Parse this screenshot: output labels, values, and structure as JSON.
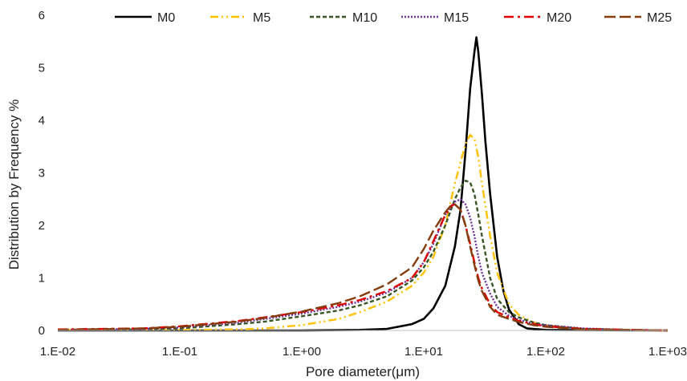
{
  "chart_data": {
    "type": "line",
    "title": "",
    "xlabel": "Pore diameter(μm)",
    "ylabel": "Distribution by Frequency %",
    "x_scale": "log",
    "xlim": [
      0.01,
      1000
    ],
    "ylim": [
      0,
      6
    ],
    "x_ticks": [
      "1.E-02",
      "1.E-01",
      "1.E+00",
      "1.E+01",
      "1.E+02",
      "1.E+03"
    ],
    "y_ticks": [
      "0",
      "1",
      "2",
      "3",
      "4",
      "5",
      "6"
    ],
    "grid": false,
    "legend_position": "top",
    "series": [
      {
        "name": "M0",
        "color": "#000000",
        "dash": "solid",
        "points": [
          [
            0.01,
            0
          ],
          [
            0.1,
            0
          ],
          [
            1,
            0
          ],
          [
            3,
            0.01
          ],
          [
            5,
            0.03
          ],
          [
            8,
            0.12
          ],
          [
            10,
            0.22
          ],
          [
            12,
            0.42
          ],
          [
            15,
            0.85
          ],
          [
            18,
            1.6
          ],
          [
            20,
            2.3
          ],
          [
            22,
            3.4
          ],
          [
            24,
            4.6
          ],
          [
            26,
            5.3
          ],
          [
            27,
            5.58
          ],
          [
            28,
            5.3
          ],
          [
            30,
            4.5
          ],
          [
            32,
            3.6
          ],
          [
            35,
            2.6
          ],
          [
            40,
            1.4
          ],
          [
            45,
            0.75
          ],
          [
            50,
            0.4
          ],
          [
            60,
            0.12
          ],
          [
            70,
            0.04
          ],
          [
            100,
            0.01
          ],
          [
            1000,
            0
          ]
        ]
      },
      {
        "name": "M5",
        "color": "#FFC000",
        "dash": "dashdotdot",
        "points": [
          [
            0.01,
            0.01
          ],
          [
            0.05,
            0.01
          ],
          [
            0.1,
            0.01
          ],
          [
            0.3,
            0.02
          ],
          [
            0.5,
            0.04
          ],
          [
            1,
            0.1
          ],
          [
            2,
            0.22
          ],
          [
            3,
            0.35
          ],
          [
            5,
            0.55
          ],
          [
            8,
            0.85
          ],
          [
            10,
            1.1
          ],
          [
            12,
            1.4
          ],
          [
            15,
            2.0
          ],
          [
            18,
            2.8
          ],
          [
            20,
            3.2
          ],
          [
            22,
            3.55
          ],
          [
            24,
            3.72
          ],
          [
            26,
            3.65
          ],
          [
            28,
            3.3
          ],
          [
            30,
            2.8
          ],
          [
            35,
            1.8
          ],
          [
            40,
            1.1
          ],
          [
            50,
            0.5
          ],
          [
            60,
            0.3
          ],
          [
            80,
            0.15
          ],
          [
            100,
            0.1
          ],
          [
            200,
            0.03
          ],
          [
            500,
            0.01
          ],
          [
            1000,
            0
          ]
        ]
      },
      {
        "name": "M10",
        "color": "#375623",
        "dash": "dashed",
        "points": [
          [
            0.01,
            0.01
          ],
          [
            0.05,
            0.02
          ],
          [
            0.1,
            0.04
          ],
          [
            0.3,
            0.12
          ],
          [
            0.5,
            0.17
          ],
          [
            1,
            0.27
          ],
          [
            2,
            0.38
          ],
          [
            3,
            0.48
          ],
          [
            5,
            0.65
          ],
          [
            8,
            0.95
          ],
          [
            10,
            1.2
          ],
          [
            12,
            1.5
          ],
          [
            15,
            2.0
          ],
          [
            18,
            2.5
          ],
          [
            20,
            2.72
          ],
          [
            22,
            2.85
          ],
          [
            24,
            2.82
          ],
          [
            26,
            2.6
          ],
          [
            28,
            2.2
          ],
          [
            30,
            1.8
          ],
          [
            35,
            1.0
          ],
          [
            40,
            0.6
          ],
          [
            50,
            0.35
          ],
          [
            60,
            0.25
          ],
          [
            80,
            0.15
          ],
          [
            100,
            0.1
          ],
          [
            200,
            0.03
          ],
          [
            500,
            0.01
          ],
          [
            1000,
            0
          ]
        ]
      },
      {
        "name": "M15",
        "color": "#7030A0",
        "dash": "dotted",
        "points": [
          [
            0.01,
            0.01
          ],
          [
            0.05,
            0.03
          ],
          [
            0.1,
            0.06
          ],
          [
            0.3,
            0.15
          ],
          [
            0.5,
            0.22
          ],
          [
            1,
            0.32
          ],
          [
            2,
            0.45
          ],
          [
            3,
            0.55
          ],
          [
            5,
            0.72
          ],
          [
            8,
            1.0
          ],
          [
            10,
            1.3
          ],
          [
            12,
            1.65
          ],
          [
            15,
            2.2
          ],
          [
            18,
            2.45
          ],
          [
            20,
            2.5
          ],
          [
            22,
            2.4
          ],
          [
            24,
            2.15
          ],
          [
            26,
            1.8
          ],
          [
            28,
            1.4
          ],
          [
            30,
            1.1
          ],
          [
            35,
            0.7
          ],
          [
            40,
            0.45
          ],
          [
            50,
            0.28
          ],
          [
            60,
            0.2
          ],
          [
            80,
            0.13
          ],
          [
            100,
            0.1
          ],
          [
            200,
            0.04
          ],
          [
            500,
            0.01
          ],
          [
            1000,
            0
          ]
        ]
      },
      {
        "name": "M20",
        "color": "#E00000",
        "dash": "dashdot",
        "points": [
          [
            0.01,
            0.02
          ],
          [
            0.05,
            0.04
          ],
          [
            0.1,
            0.08
          ],
          [
            0.3,
            0.18
          ],
          [
            0.5,
            0.25
          ],
          [
            1,
            0.35
          ],
          [
            2,
            0.48
          ],
          [
            3,
            0.58
          ],
          [
            5,
            0.75
          ],
          [
            8,
            1.0
          ],
          [
            10,
            1.3
          ],
          [
            12,
            1.7
          ],
          [
            15,
            2.2
          ],
          [
            17,
            2.38
          ],
          [
            18,
            2.4
          ],
          [
            20,
            2.3
          ],
          [
            22,
            2.0
          ],
          [
            24,
            1.65
          ],
          [
            26,
            1.3
          ],
          [
            28,
            1.0
          ],
          [
            30,
            0.8
          ],
          [
            35,
            0.5
          ],
          [
            40,
            0.35
          ],
          [
            50,
            0.25
          ],
          [
            60,
            0.18
          ],
          [
            80,
            0.12
          ],
          [
            100,
            0.08
          ],
          [
            200,
            0.03
          ],
          [
            500,
            0.01
          ],
          [
            1000,
            0
          ]
        ]
      },
      {
        "name": "M25",
        "color": "#843C0C",
        "dash": "longdash",
        "points": [
          [
            0.01,
            0.01
          ],
          [
            0.05,
            0.04
          ],
          [
            0.1,
            0.07
          ],
          [
            0.3,
            0.17
          ],
          [
            0.5,
            0.24
          ],
          [
            1,
            0.36
          ],
          [
            2,
            0.52
          ],
          [
            3,
            0.65
          ],
          [
            5,
            0.88
          ],
          [
            8,
            1.2
          ],
          [
            10,
            1.55
          ],
          [
            12,
            1.9
          ],
          [
            15,
            2.25
          ],
          [
            17,
            2.4
          ],
          [
            18,
            2.4
          ],
          [
            20,
            2.3
          ],
          [
            22,
            2.0
          ],
          [
            24,
            1.6
          ],
          [
            26,
            1.25
          ],
          [
            28,
            0.95
          ],
          [
            30,
            0.75
          ],
          [
            35,
            0.45
          ],
          [
            40,
            0.3
          ],
          [
            50,
            0.22
          ],
          [
            60,
            0.16
          ],
          [
            80,
            0.1
          ],
          [
            100,
            0.07
          ],
          [
            200,
            0.02
          ],
          [
            500,
            0.01
          ],
          [
            1000,
            0
          ]
        ]
      }
    ]
  }
}
